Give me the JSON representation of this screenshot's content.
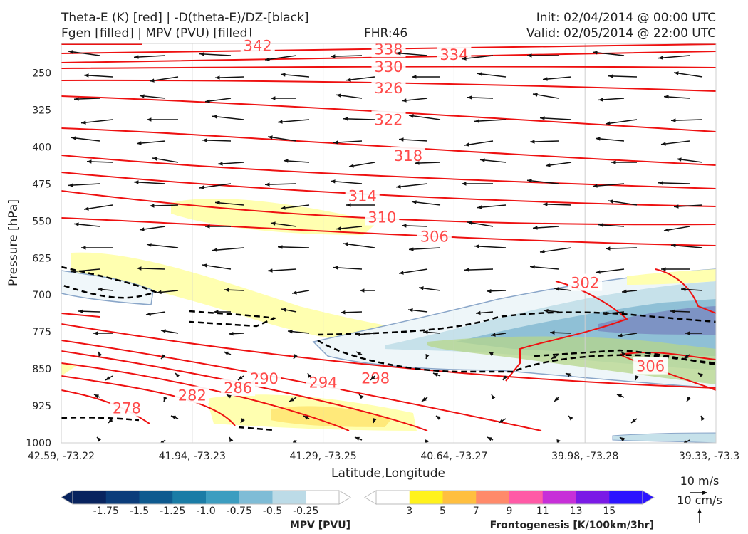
{
  "header": {
    "line1_left": "Theta-E (K) [red] | -D(theta-E)/DZ-[black]",
    "line2_left": "Fgen [filled] | MPV (PVU) [filled]",
    "fhr": "FHR:46",
    "init": "Init: 02/04/2014 @ 00:00 UTC",
    "valid": "Valid: 02/05/2014 @ 22:00 UTC"
  },
  "chart_data": {
    "type": "cross-section",
    "xlabel": "Latitude,Longitude",
    "ylabel": "Pressure [hPa]",
    "x_ticks": [
      "42.59, -73.22",
      "41.94, -73.23",
      "41.29, -73.25",
      "40.64, -73.27",
      "39.98, -73.28",
      "39.33, -73.3"
    ],
    "y_ticks": [
      250,
      325,
      400,
      475,
      550,
      625,
      700,
      775,
      850,
      925,
      1000
    ],
    "ylim": [
      1000,
      190
    ],
    "grid": true,
    "theta_e_labels": [
      {
        "value": "342",
        "x_frac": 0.3,
        "p": 195
      },
      {
        "value": "338",
        "x_frac": 0.5,
        "p": 202
      },
      {
        "value": "334",
        "x_frac": 0.6,
        "p": 213
      },
      {
        "value": "330",
        "x_frac": 0.5,
        "p": 238
      },
      {
        "value": "326",
        "x_frac": 0.5,
        "p": 281
      },
      {
        "value": "322",
        "x_frac": 0.5,
        "p": 345
      },
      {
        "value": "318",
        "x_frac": 0.53,
        "p": 418
      },
      {
        "value": "314",
        "x_frac": 0.46,
        "p": 500
      },
      {
        "value": "310",
        "x_frac": 0.49,
        "p": 543
      },
      {
        "value": "306",
        "x_frac": 0.57,
        "p": 582
      },
      {
        "value": "302",
        "x_frac": 0.8,
        "p": 676
      },
      {
        "value": "306",
        "x_frac": 0.9,
        "p": 845
      },
      {
        "value": "298",
        "x_frac": 0.48,
        "p": 869
      },
      {
        "value": "294",
        "x_frac": 0.4,
        "p": 878
      },
      {
        "value": "290",
        "x_frac": 0.31,
        "p": 870
      },
      {
        "value": "286",
        "x_frac": 0.27,
        "p": 889
      },
      {
        "value": "282",
        "x_frac": 0.2,
        "p": 904
      },
      {
        "value": "278",
        "x_frac": 0.1,
        "p": 930
      }
    ]
  },
  "mpv_colorbar": {
    "title": "MPV [PVU]",
    "ticks": [
      "-1.75",
      "-1.5",
      "-1.25",
      "-1.0",
      "-0.75",
      "-0.5",
      "-0.25"
    ],
    "colors": [
      "#08235e",
      "#0b3c7a",
      "#0e5a8f",
      "#1a7ca6",
      "#3c9dc0",
      "#7fbcd6",
      "#bcdbe7",
      "#ffffff"
    ]
  },
  "fgen_colorbar": {
    "title": "Frontogenesis [K/100km/3hr]",
    "ticks": [
      "3",
      "5",
      "7",
      "9",
      "11",
      "13",
      "15"
    ],
    "colors": [
      "#ffffff",
      "#fff21c",
      "#ffbf40",
      "#ff8a6a",
      "#ff5aa6",
      "#c72fd8",
      "#7a1ae6",
      "#2c14ff"
    ]
  },
  "wind_reference": {
    "horizontal": "10 m/s",
    "vertical": "10 cm/s"
  }
}
